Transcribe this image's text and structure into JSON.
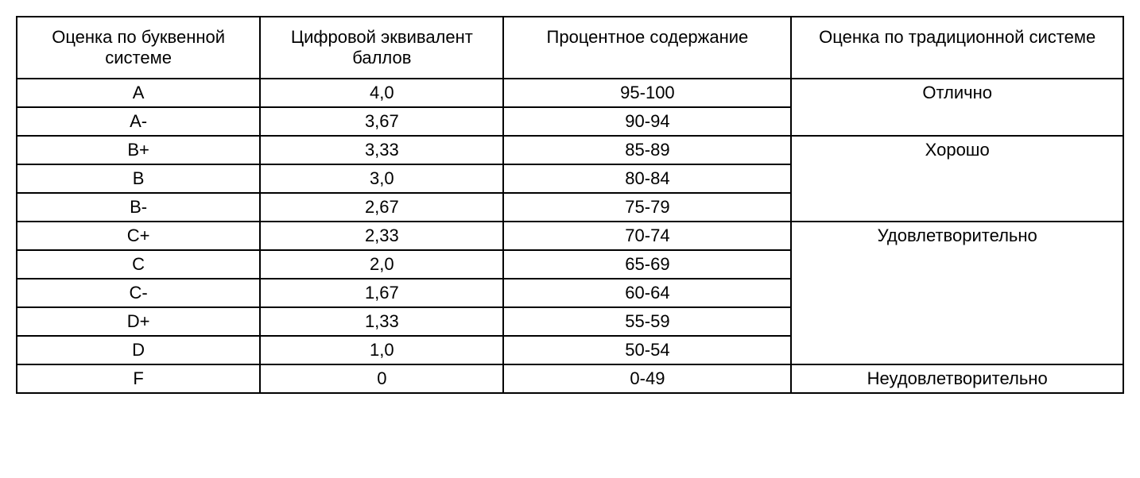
{
  "table": {
    "type": "table",
    "border_color": "#000000",
    "background_color": "#ffffff",
    "text_color": "#000000",
    "font_family": "Arial, sans-serif",
    "header_fontsize": 22,
    "cell_fontsize": 22,
    "columns": [
      "Оценка по буквенной системе",
      "Цифровой эквивалент баллов",
      "Процентное содержание",
      "Оценка по традиционной системе"
    ],
    "rows": [
      {
        "letter": "A",
        "numeric": "4,0",
        "percent": "95-100"
      },
      {
        "letter": "A-",
        "numeric": "3,67",
        "percent": "90-94"
      },
      {
        "letter": "B+",
        "numeric": "3,33",
        "percent": "85-89"
      },
      {
        "letter": "B",
        "numeric": "3,0",
        "percent": "80-84"
      },
      {
        "letter": "B-",
        "numeric": "2,67",
        "percent": "75-79"
      },
      {
        "letter": "C+",
        "numeric": "2,33",
        "percent": "70-74"
      },
      {
        "letter": "C",
        "numeric": "2,0",
        "percent": "65-69"
      },
      {
        "letter": "C-",
        "numeric": "1,67",
        "percent": "60-64"
      },
      {
        "letter": "D+",
        "numeric": "1,33",
        "percent": "55-59"
      },
      {
        "letter": "D",
        "numeric": "1,0",
        "percent": "50-54"
      },
      {
        "letter": "F",
        "numeric": "0",
        "percent": "0-49"
      }
    ],
    "traditional_groups": [
      {
        "label": "Отлично",
        "rowspan": 2
      },
      {
        "label": "Хорошо",
        "rowspan": 3
      },
      {
        "label": "Удовлетворительно",
        "rowspan": 5
      },
      {
        "label": "Неудовлетворительно",
        "rowspan": 1
      }
    ]
  }
}
